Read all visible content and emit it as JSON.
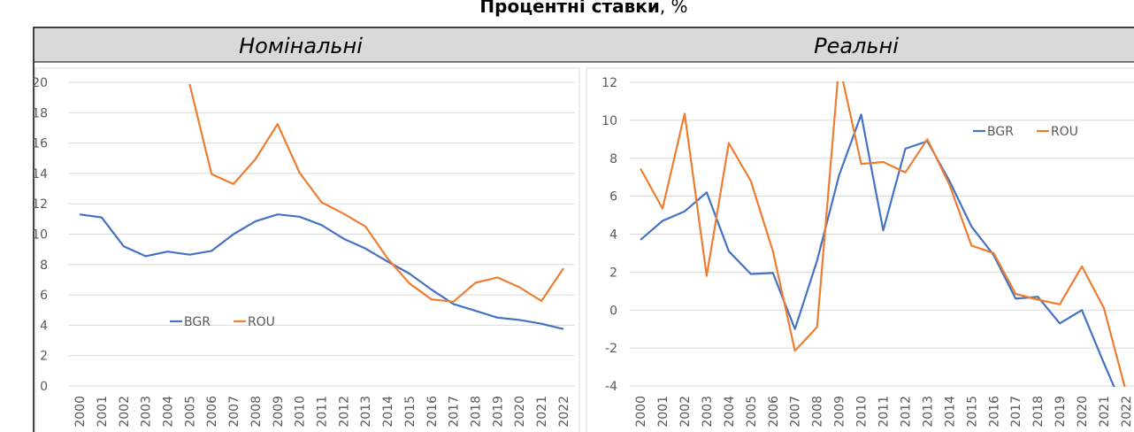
{
  "header": {
    "title": "Процентні ставки",
    "unit": ", %"
  },
  "chart_data": [
    {
      "type": "line",
      "title": "Номінальні",
      "categories": [
        "2000",
        "2001",
        "2002",
        "2003",
        "2004",
        "2005",
        "2006",
        "2007",
        "2008",
        "2009",
        "2010",
        "2011",
        "2012",
        "2013",
        "2014",
        "2015",
        "2016",
        "2017",
        "2018",
        "2019",
        "2020",
        "2021",
        "2022"
      ],
      "series": [
        {
          "name": "BGR",
          "color": "#4472c4",
          "values": [
            11.3,
            11.1,
            9.2,
            8.55,
            8.85,
            8.65,
            8.9,
            10.0,
            10.85,
            11.3,
            11.15,
            10.6,
            9.7,
            9.05,
            8.2,
            7.4,
            6.35,
            5.4,
            4.95,
            4.5,
            4.35,
            4.1,
            3.75
          ]
        },
        {
          "name": "ROU",
          "color": "#ed7d31",
          "values": [
            null,
            null,
            null,
            null,
            null,
            19.9,
            13.95,
            13.3,
            14.95,
            17.25,
            14.05,
            12.1,
            11.35,
            10.5,
            8.4,
            6.75,
            5.7,
            5.55,
            6.8,
            7.15,
            6.5,
            5.6,
            7.75
          ]
        }
      ],
      "ylim": [
        0,
        20
      ],
      "yticks": [
        0,
        2,
        4,
        6,
        8,
        10,
        12,
        14,
        16,
        18,
        20
      ],
      "grid": true,
      "legend": "center left"
    },
    {
      "type": "line",
      "title": "Реальні",
      "categories": [
        "2000",
        "2001",
        "2002",
        "2003",
        "2004",
        "2005",
        "2006",
        "2007",
        "2008",
        "2009",
        "2010",
        "2011",
        "2012",
        "2013",
        "2014",
        "2015",
        "2016",
        "2017",
        "2018",
        "2019",
        "2020",
        "2021",
        "2022"
      ],
      "series": [
        {
          "name": "BGR",
          "color": "#4472c4",
          "values": [
            3.7,
            4.7,
            5.2,
            6.2,
            3.1,
            1.9,
            1.95,
            -1.0,
            2.6,
            7.1,
            10.3,
            4.2,
            8.5,
            8.9,
            6.8,
            4.4,
            2.9,
            0.6,
            0.7,
            -0.7,
            0.0,
            -2.8,
            -5.5
          ]
        },
        {
          "name": "ROU",
          "color": "#ed7d31",
          "values": [
            7.45,
            5.35,
            10.35,
            1.8,
            8.8,
            6.8,
            3.1,
            -2.15,
            -0.9,
            13.0,
            7.7,
            7.8,
            7.25,
            9.0,
            6.6,
            3.4,
            3.0,
            0.85,
            0.55,
            0.3,
            2.3,
            0.1,
            -4.3
          ]
        }
      ],
      "ylim": [
        -4,
        12
      ],
      "yticks": [
        -4,
        -2,
        0,
        2,
        4,
        6,
        8,
        10,
        12
      ],
      "grid": true,
      "legend": "upper right"
    }
  ]
}
